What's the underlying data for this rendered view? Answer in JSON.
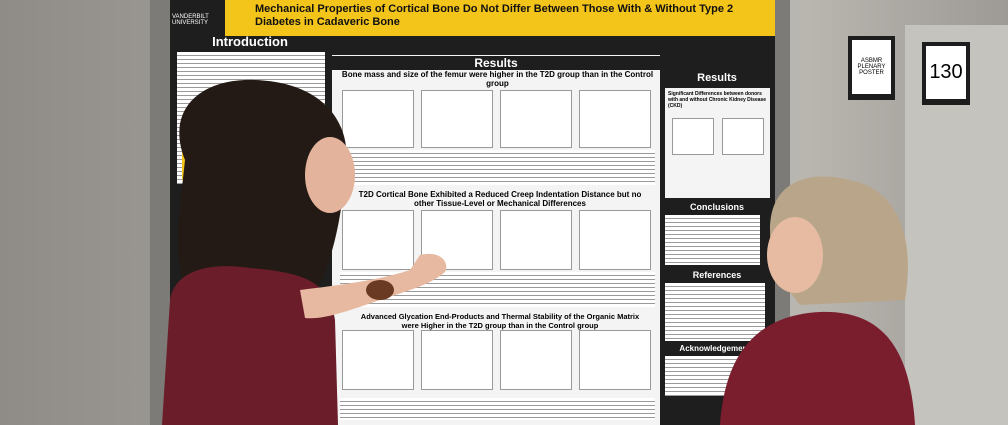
{
  "poster": {
    "title": "Mechanical Properties of Cortical Bone Do Not Differ Between Those With & Without Type 2 Diabetes in Cadaveric Bone",
    "logo": "VANDERBILT UNIVERSITY",
    "sections": {
      "introduction": "Introduction",
      "results_main": "Results",
      "results_side": "Results",
      "conclusions": "Conclusions",
      "references": "References",
      "acknowledgements": "Acknowledgements"
    },
    "result_headings": [
      "Bone mass and size of the femur were higher in the T2D group than in the Control group",
      "T2D Cortical Bone Exhibited a Reduced Creep Indentation Distance but no other Tissue-Level or Mechanical Differences",
      "Advanced Glycation End-Products and Thermal Stability of the Organic Matrix were Higher in the T2D group than in the Control group"
    ],
    "side_heading": "Significant Differences between donors with and without Chronic Kidney Disease (CKD)"
  },
  "board": {
    "plenary_card": "ASBMR PLENARY POSTER",
    "number": "130"
  }
}
